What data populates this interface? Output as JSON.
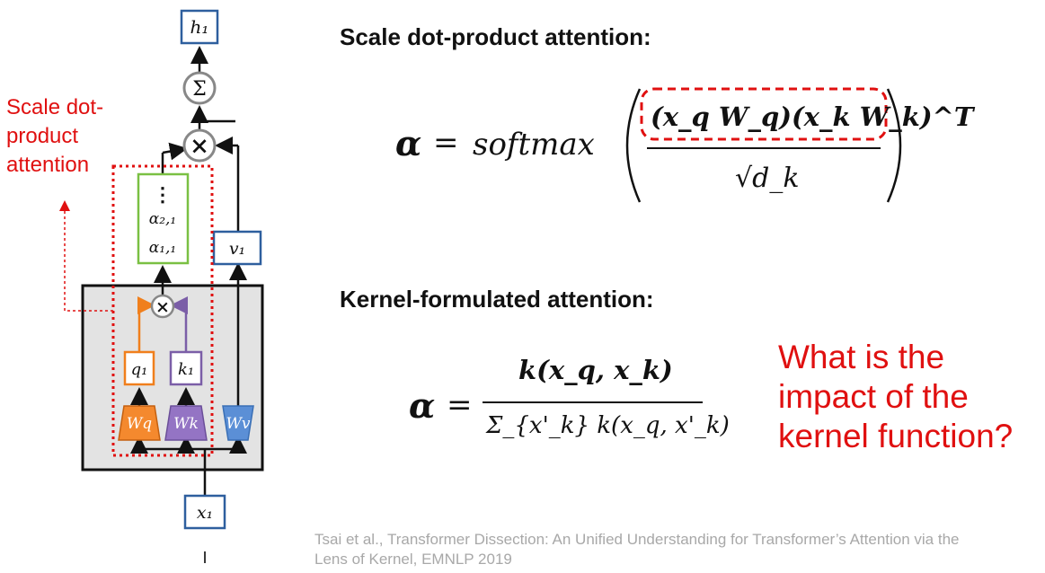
{
  "diagram": {
    "output_node": "h₁",
    "sum_symbol": "Σ",
    "multiply_symbol": "×",
    "score_dots": "⋮",
    "score_a21": "α₂,₁",
    "score_a11": "α₁,₁",
    "value_node": "v₁",
    "query_node": "q₁",
    "key_node": "k₁",
    "wq_label": "Wq",
    "wk_label": "Wk",
    "wv_label": "Wv",
    "input_node": "x₁",
    "bottom_mark": "I",
    "annotation_label": "Scale dot-product attention",
    "colors": {
      "annotation_red": "#e01010",
      "output_blue": "#2e5f9e",
      "score_green": "#7ac043",
      "query_orange": "#f07f1c",
      "key_purple": "#7b5ea7",
      "value_blue": "#5b8fd6",
      "block_gray": "#e3e3e3"
    }
  },
  "sections": {
    "scale_heading": "Scale dot-product attention:",
    "kernel_heading": "Kernel-formulated attention:",
    "question": "What is the impact of the kernel function?",
    "citation": "Tsai et al., Transformer Dissection: An Unified Understanding for Transformer’s Attention via the Lens of Kernel, EMNLP 2019"
  },
  "formulas": {
    "alpha": "α",
    "equals": "=",
    "softmax": "softmax",
    "softmax_numerator": "(x_q W_q)(x_k W_k)^T",
    "softmax_denominator": "√d_k",
    "kernel_numerator": "k(x_q, x_k)",
    "kernel_denominator": "Σ_{x'_k} k(x_q, x'_k)"
  }
}
